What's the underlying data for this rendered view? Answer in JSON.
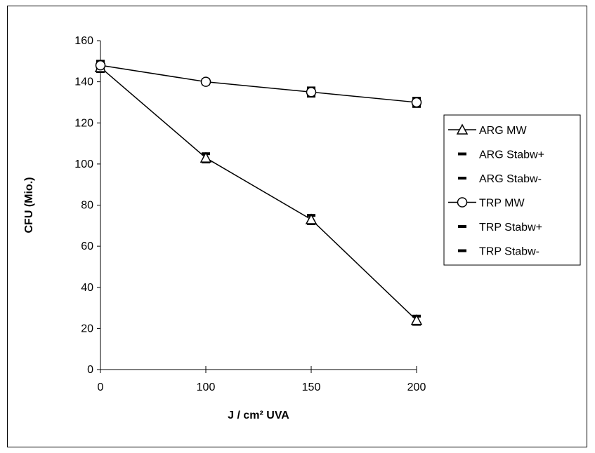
{
  "chart_data": {
    "type": "line",
    "x": [
      0,
      100,
      150,
      200
    ],
    "xlabel": "J / cm² UVA",
    "ylabel": "CFU (Mio.)",
    "xticks": [
      "0",
      "100",
      "150",
      "200"
    ],
    "yticks": [
      0,
      20,
      40,
      60,
      80,
      100,
      120,
      140,
      160
    ],
    "ylim": [
      0,
      160
    ],
    "x_axis": "categorical",
    "grid": false,
    "legend_position": "right",
    "series": [
      {
        "name": "ARG MW",
        "marker": "triangle",
        "values": [
          147,
          103,
          73,
          24
        ]
      },
      {
        "name": "ARG Stabw+",
        "marker": "dash",
        "values": [
          149,
          105,
          75,
          26
        ]
      },
      {
        "name": "ARG Stabw-",
        "marker": "dash",
        "values": [
          145,
          101,
          71,
          22
        ]
      },
      {
        "name": "TRP MW",
        "marker": "circle",
        "values": [
          148,
          140,
          135,
          130
        ]
      },
      {
        "name": "TRP Stabw+",
        "marker": "dash",
        "values": [
          150,
          141,
          137,
          132
        ]
      },
      {
        "name": "TRP Stabw-",
        "marker": "dash",
        "values": [
          146,
          139,
          133,
          128
        ]
      }
    ],
    "colors": {
      "line": "#000000",
      "marker_fill": "#ffffff",
      "background": "#ffffff"
    }
  }
}
